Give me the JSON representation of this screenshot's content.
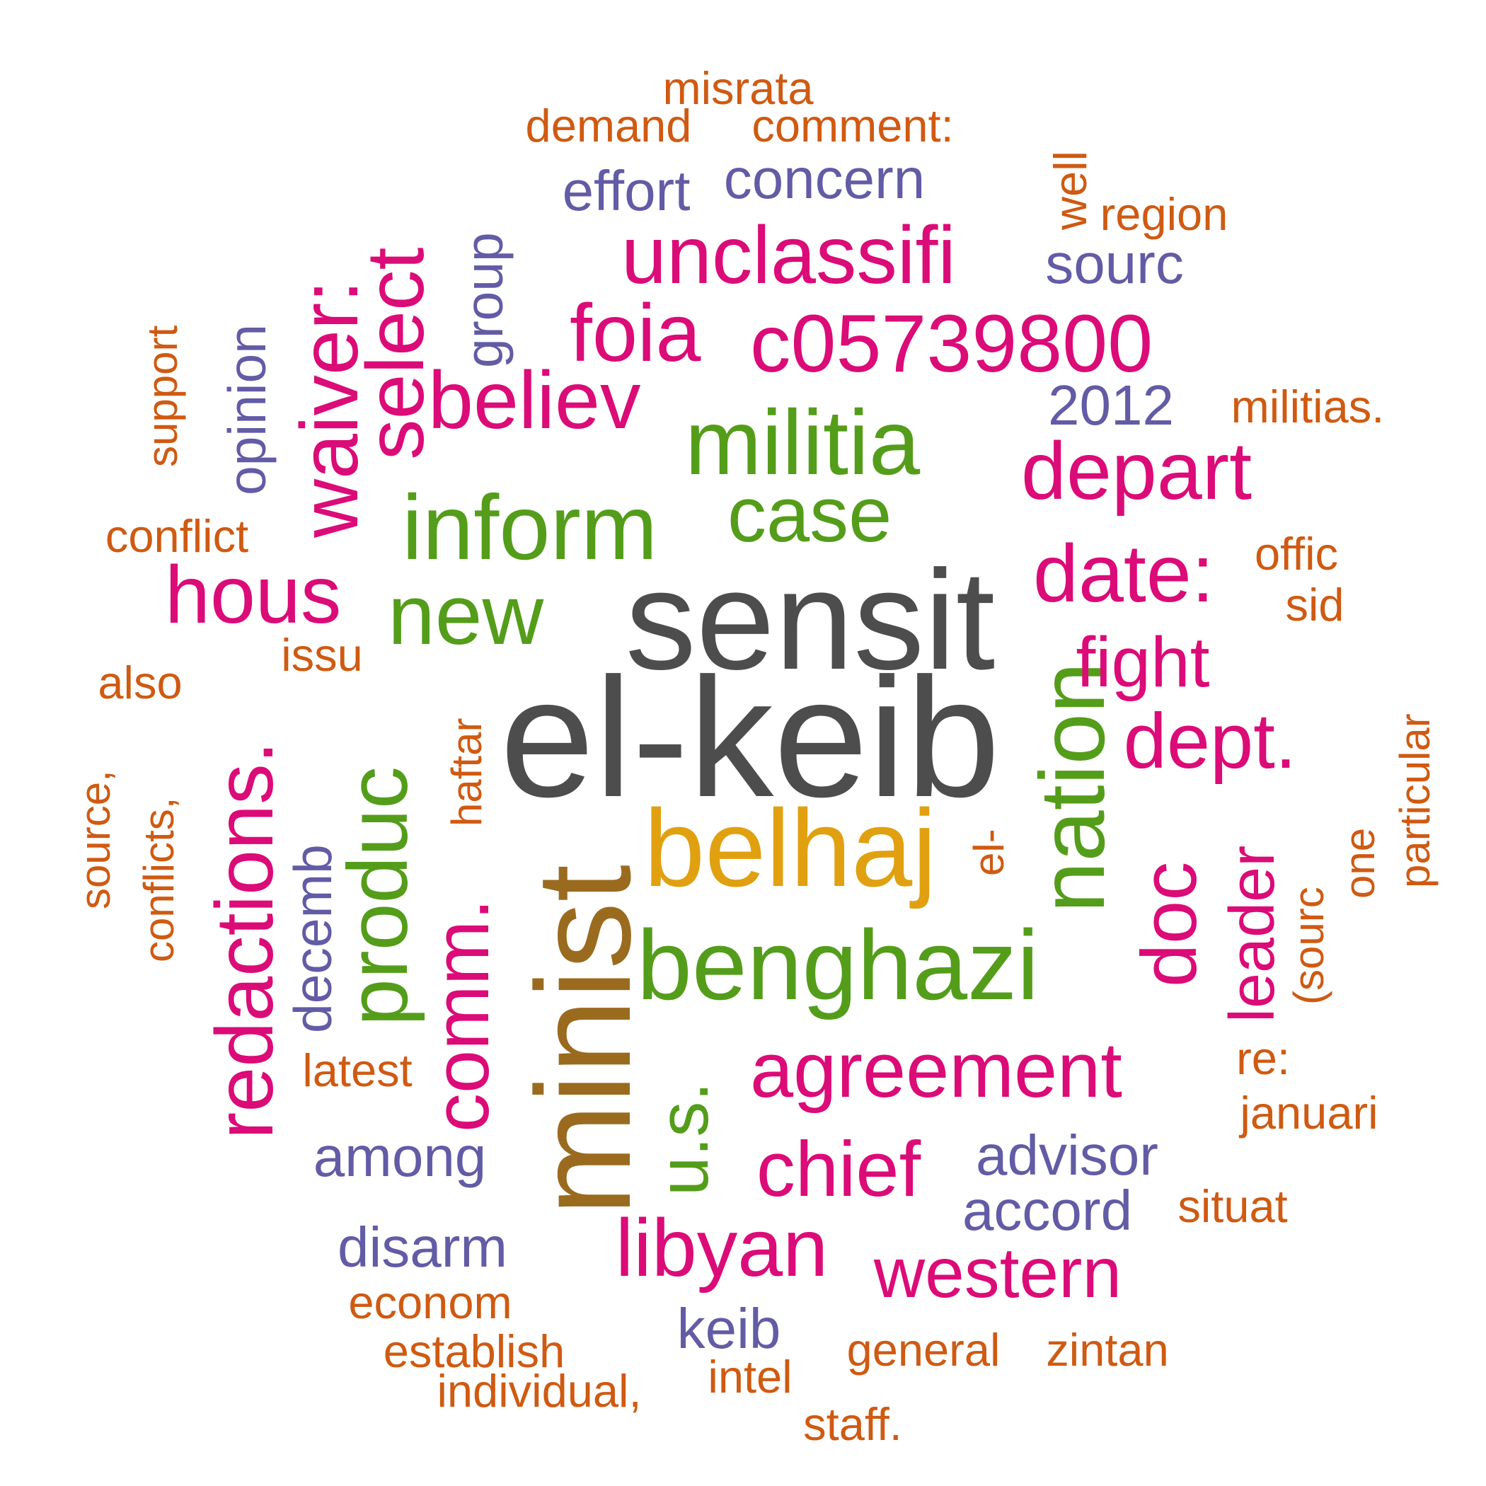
{
  "palette": {
    "gray": "#4d4d4d",
    "brown": "#9a6b1f",
    "gold": "#e0a010",
    "green": "#549d1a",
    "magenta": "#db0b78",
    "purple": "#625ba5",
    "orange": "#cf5a12"
  },
  "words": [
    {
      "text": "el-keib",
      "color": "gray"
    },
    {
      "text": "sensit",
      "color": "gray"
    },
    {
      "text": "minist",
      "color": "brown"
    },
    {
      "text": "belhaj",
      "color": "gold"
    },
    {
      "text": "benghazi",
      "color": "green"
    },
    {
      "text": "nation",
      "color": "green"
    },
    {
      "text": "inform",
      "color": "green"
    },
    {
      "text": "militia",
      "color": "green"
    },
    {
      "text": "case",
      "color": "green"
    },
    {
      "text": "new",
      "color": "green"
    },
    {
      "text": "produc",
      "color": "green"
    },
    {
      "text": "comm.",
      "color": "magenta"
    },
    {
      "text": "u.s.",
      "color": "green"
    },
    {
      "text": "c05739800",
      "color": "magenta"
    },
    {
      "text": "unclassifi",
      "color": "magenta"
    },
    {
      "text": "foia",
      "color": "magenta"
    },
    {
      "text": "believ",
      "color": "magenta"
    },
    {
      "text": "depart",
      "color": "magenta"
    },
    {
      "text": "date:",
      "color": "magenta"
    },
    {
      "text": "fight",
      "color": "magenta"
    },
    {
      "text": "dept.",
      "color": "magenta"
    },
    {
      "text": "doc",
      "color": "magenta"
    },
    {
      "text": "leader",
      "color": "magenta"
    },
    {
      "text": "hous",
      "color": "magenta"
    },
    {
      "text": "redactions.",
      "color": "magenta"
    },
    {
      "text": "waiver:",
      "color": "magenta"
    },
    {
      "text": "select",
      "color": "magenta"
    },
    {
      "text": "agreement",
      "color": "magenta"
    },
    {
      "text": "chief",
      "color": "magenta"
    },
    {
      "text": "libyan",
      "color": "magenta"
    },
    {
      "text": "western",
      "color": "magenta"
    },
    {
      "text": "effort",
      "color": "purple"
    },
    {
      "text": "concern",
      "color": "purple"
    },
    {
      "text": "sourc",
      "color": "purple"
    },
    {
      "text": "2012",
      "color": "purple"
    },
    {
      "text": "group",
      "color": "purple"
    },
    {
      "text": "opinion",
      "color": "purple"
    },
    {
      "text": "decemb",
      "color": "purple"
    },
    {
      "text": "among",
      "color": "purple"
    },
    {
      "text": "advisor",
      "color": "purple"
    },
    {
      "text": "accord",
      "color": "purple"
    },
    {
      "text": "disarm",
      "color": "purple"
    },
    {
      "text": "keib",
      "color": "purple"
    },
    {
      "text": "misrata",
      "color": "orange"
    },
    {
      "text": "demand",
      "color": "orange"
    },
    {
      "text": "comment:",
      "color": "orange"
    },
    {
      "text": "well",
      "color": "orange"
    },
    {
      "text": "region",
      "color": "orange"
    },
    {
      "text": "militias.",
      "color": "orange"
    },
    {
      "text": "support",
      "color": "orange"
    },
    {
      "text": "conflict",
      "color": "orange"
    },
    {
      "text": "offic",
      "color": "orange"
    },
    {
      "text": "sid",
      "color": "orange"
    },
    {
      "text": "issu",
      "color": "orange"
    },
    {
      "text": "also",
      "color": "orange"
    },
    {
      "text": "particular",
      "color": "orange"
    },
    {
      "text": "haftar",
      "color": "orange"
    },
    {
      "text": "source,",
      "color": "orange"
    },
    {
      "text": "conflicts,",
      "color": "orange"
    },
    {
      "text": "el-",
      "color": "orange"
    },
    {
      "text": "one",
      "color": "orange"
    },
    {
      "text": "(sourc",
      "color": "orange"
    },
    {
      "text": "re:",
      "color": "orange"
    },
    {
      "text": "januari",
      "color": "orange"
    },
    {
      "text": "latest",
      "color": "orange"
    },
    {
      "text": "situat",
      "color": "orange"
    },
    {
      "text": "econom",
      "color": "orange"
    },
    {
      "text": "establish",
      "color": "orange"
    },
    {
      "text": "general",
      "color": "orange"
    },
    {
      "text": "zintan",
      "color": "orange"
    },
    {
      "text": "individual,",
      "color": "orange"
    },
    {
      "text": "intel",
      "color": "orange"
    },
    {
      "text": "staff.",
      "color": "orange"
    }
  ]
}
